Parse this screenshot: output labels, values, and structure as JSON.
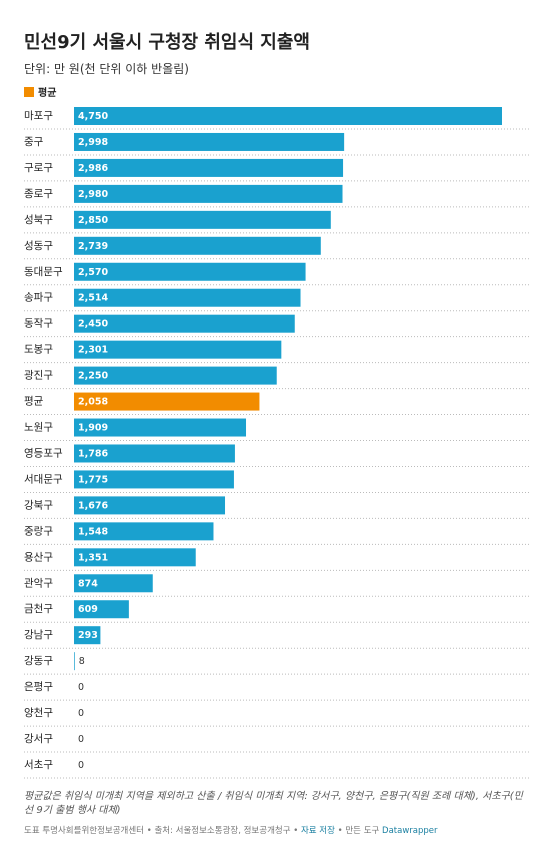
{
  "chart_data": {
    "type": "bar",
    "orientation": "horizontal",
    "title": "민선9기 서울시 구청장 취임식 지출액",
    "subtitle": "단위: 만 원(천 단위 이하 반올림)",
    "legend": [
      {
        "label": "평균",
        "color": "#f28c00"
      }
    ],
    "color": "#1aa1cf",
    "categories": [
      "마포구",
      "중구",
      "구로구",
      "종로구",
      "성북구",
      "성동구",
      "동대문구",
      "송파구",
      "동작구",
      "도봉구",
      "광진구",
      "평균",
      "노원구",
      "영등포구",
      "서대문구",
      "강북구",
      "중랑구",
      "용산구",
      "관악구",
      "금천구",
      "강남구",
      "강동구",
      "은평구",
      "양천구",
      "강서구",
      "서초구"
    ],
    "values": [
      4750,
      2998,
      2986,
      2980,
      2850,
      2739,
      2570,
      2514,
      2450,
      2301,
      2250,
      2058,
      1909,
      1786,
      1775,
      1676,
      1548,
      1351,
      874,
      609,
      293,
      8,
      0,
      0,
      0,
      0
    ],
    "value_labels": [
      "4,750",
      "2,998",
      "2,986",
      "2,980",
      "2,850",
      "2,739",
      "2,570",
      "2,514",
      "2,450",
      "2,301",
      "2,250",
      "2,058",
      "1,909",
      "1,786",
      "1,775",
      "1,676",
      "1,548",
      "1,351",
      "874",
      "609",
      "293",
      "8",
      "0",
      "0",
      "0",
      "0"
    ],
    "xlim": [
      0,
      4750
    ],
    "notes": "평균값은 취임식 미개최 지역을 제외하고 산출 / 취임식 미개최 지역: 강서구, 양천구, 은평구(직원 조례 대체), 서초구(민선 9기 출범 행사 대체)",
    "footer": {
      "byline": "도표 투명사회를위한정보공개센터",
      "source": "출처: 서울정보소통광장, 정보공개청구",
      "download": "자료 저장",
      "tool_prefix": "만든 도구",
      "tool": "Datawrapper"
    }
  }
}
